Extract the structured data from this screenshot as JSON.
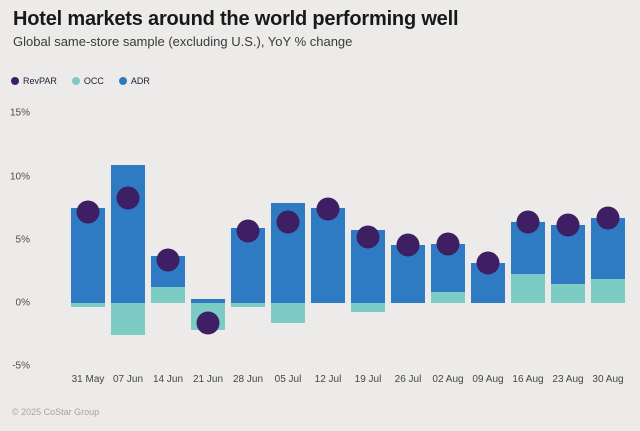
{
  "header": {
    "title": "Hotel markets around the world performing well",
    "subtitle": "Global same-store sample (excluding U.S.), YoY % change"
  },
  "legend": {
    "items": [
      {
        "label": "RevPAR",
        "swatch": "circle-icon",
        "color": "#3E1F63"
      },
      {
        "label": "OCC",
        "swatch": "circle-icon",
        "color": "#7DCBC5"
      },
      {
        "label": "ADR",
        "swatch": "circle-icon",
        "color": "#2E7BC3"
      }
    ]
  },
  "footer": {
    "copyright": "© 2025 CoStar Group"
  },
  "colors": {
    "background": "#ECEBE9",
    "adr_blue": "#2E7BC3",
    "occ_teal": "#7DCBC5",
    "revpar_purple": "#3E1F63",
    "title_text": "#191919",
    "subtitle_text": "#3A3A3A",
    "axis_text": "#4E4E4E",
    "footer_text": "#A5A4A2"
  },
  "chart_data": {
    "type": "bar",
    "subtype": "stacked-bars-with-dot-overlay",
    "title": "Hotel markets around the world performing well",
    "xlabel": "",
    "ylabel": "YoY % change",
    "categories": [
      "31 May",
      "07 Jun",
      "14 Jun",
      "21 Jun",
      "28 Jun",
      "05 Jul",
      "12 Jul",
      "19 Jul",
      "26 Jul",
      "02 Aug",
      "09 Aug",
      "16 Aug",
      "23 Aug",
      "30 Aug"
    ],
    "series": [
      {
        "name": "OCC",
        "render": "bar",
        "color": "#7DCBC5",
        "values": [
          -0.3,
          -2.5,
          1.3,
          -2.1,
          -0.3,
          -1.6,
          0.0,
          -0.7,
          0.0,
          0.9,
          0.0,
          2.3,
          1.5,
          1.9
        ]
      },
      {
        "name": "ADR",
        "render": "bar",
        "color": "#2E7BC3",
        "values": [
          7.5,
          10.9,
          2.4,
          0.3,
          5.9,
          7.9,
          7.5,
          5.8,
          4.6,
          3.8,
          3.2,
          4.1,
          4.7,
          4.8
        ]
      },
      {
        "name": "RevPAR",
        "render": "dot",
        "color": "#3E1F63",
        "values": [
          7.2,
          8.3,
          3.4,
          -1.6,
          5.7,
          6.4,
          7.4,
          5.2,
          4.6,
          4.7,
          3.2,
          6.4,
          6.2,
          6.7
        ]
      }
    ],
    "stacking_note": "ADR bar is stacked on top of OCC when OCC is positive; when OCC is negative the teal bar hangs below the zero line and ADR starts at zero. RevPAR dot ≈ OCC + ADR.",
    "yticks": [
      15,
      10,
      5,
      0,
      -5
    ],
    "ytick_format": "percent",
    "ylim": [
      -6.5,
      16
    ],
    "grid": false,
    "legend_position": "top-left"
  }
}
